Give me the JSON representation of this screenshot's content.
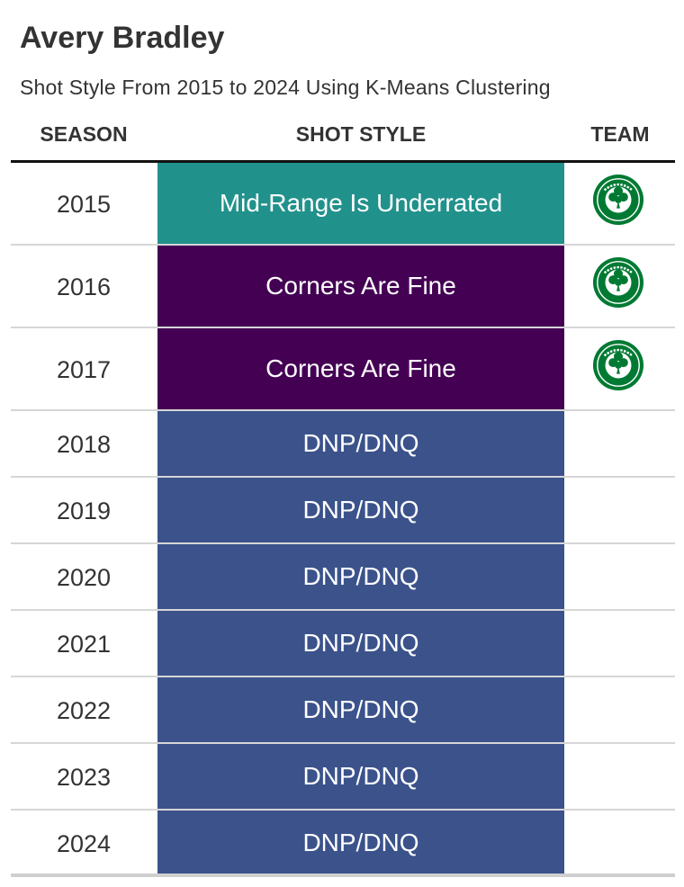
{
  "title": "Avery Bradley",
  "subtitle": "Shot Style From 2015 to 2024 Using K-Means Clustering",
  "headers": {
    "season": "SEASON",
    "shot_style": "SHOT STYLE",
    "team": "TEAM"
  },
  "colors": {
    "Mid-Range Is Underrated": "#21918c",
    "Corners Are Fine": "#440154",
    "DNP/DNQ": "#3b528b",
    "celtics_green": "#007a33"
  },
  "chart_data": {
    "type": "table",
    "columns": [
      "SEASON",
      "SHOT STYLE",
      "TEAM"
    ],
    "rows": [
      {
        "season": "2015",
        "shot_style": "Mid-Range Is Underrated",
        "team_logo": "celtics-logo-icon"
      },
      {
        "season": "2016",
        "shot_style": "Corners Are Fine",
        "team_logo": "celtics-logo-icon"
      },
      {
        "season": "2017",
        "shot_style": "Corners Are Fine",
        "team_logo": "celtics-logo-icon"
      },
      {
        "season": "2018",
        "shot_style": "DNP/DNQ",
        "team_logo": ""
      },
      {
        "season": "2019",
        "shot_style": "DNP/DNQ",
        "team_logo": ""
      },
      {
        "season": "2020",
        "shot_style": "DNP/DNQ",
        "team_logo": ""
      },
      {
        "season": "2021",
        "shot_style": "DNP/DNQ",
        "team_logo": ""
      },
      {
        "season": "2022",
        "shot_style": "DNP/DNQ",
        "team_logo": ""
      },
      {
        "season": "2023",
        "shot_style": "DNP/DNQ",
        "team_logo": ""
      },
      {
        "season": "2024",
        "shot_style": "DNP/DNQ",
        "team_logo": ""
      }
    ]
  }
}
